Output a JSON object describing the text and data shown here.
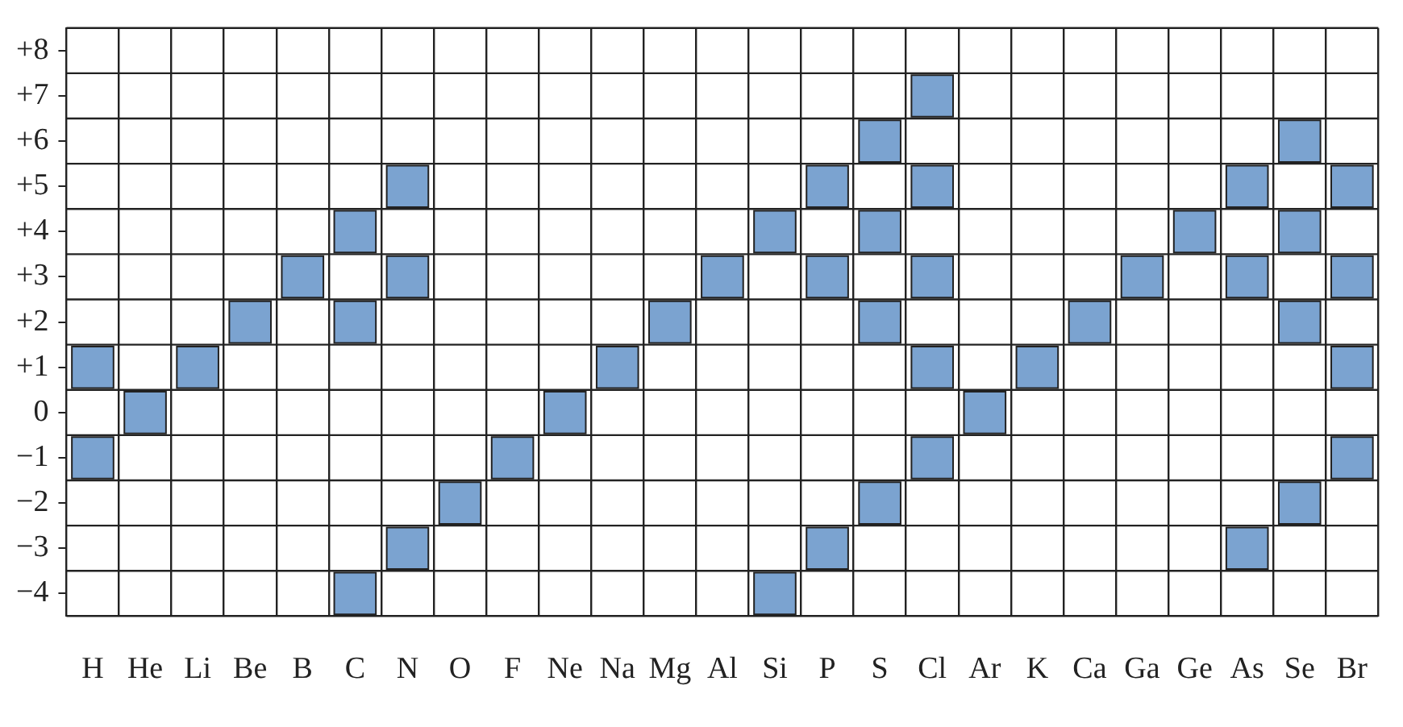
{
  "chart_data": {
    "type": "scatter",
    "marker": "square",
    "grid": true,
    "categories": [
      "H",
      "He",
      "Li",
      "Be",
      "B",
      "C",
      "N",
      "O",
      "F",
      "Ne",
      "Na",
      "Mg",
      "Al",
      "Si",
      "P",
      "S",
      "Cl",
      "Ar",
      "K",
      "Ca",
      "Ga",
      "Ge",
      "As",
      "Se",
      "Br"
    ],
    "series": [
      {
        "color": "#7ba3d0",
        "x": [
          "H",
          "H",
          "He",
          "Li",
          "Be",
          "B",
          "C",
          "C",
          "C",
          "N",
          "N",
          "N",
          "O",
          "F",
          "Ne",
          "Na",
          "Mg",
          "Al",
          "Si",
          "Si",
          "P",
          "P",
          "P",
          "S",
          "S",
          "S",
          "S",
          "Cl",
          "Cl",
          "Cl",
          "Cl",
          "Cl",
          "Ar",
          "K",
          "Ca",
          "Ga",
          "Ge",
          "As",
          "As",
          "As",
          "Se",
          "Se",
          "Se",
          "Se",
          "Br",
          "Br",
          "Br",
          "Br"
        ],
        "values": [
          1,
          -1,
          0,
          1,
          2,
          3,
          4,
          2,
          -4,
          5,
          3,
          -3,
          -2,
          -1,
          0,
          1,
          2,
          3,
          4,
          -4,
          5,
          3,
          -3,
          6,
          4,
          2,
          -2,
          7,
          5,
          3,
          1,
          -1,
          0,
          1,
          2,
          3,
          4,
          5,
          3,
          -3,
          6,
          4,
          2,
          -2,
          5,
          3,
          1,
          -1
        ]
      }
    ],
    "ylim": [
      -4.5,
      8.5
    ],
    "yticks": [
      {
        "value": 8,
        "label": "+8"
      },
      {
        "value": 7,
        "label": "+7"
      },
      {
        "value": 6,
        "label": "+6"
      },
      {
        "value": 5,
        "label": "+5"
      },
      {
        "value": 4,
        "label": "+4"
      },
      {
        "value": 3,
        "label": "+3"
      },
      {
        "value": 2,
        "label": "+2"
      },
      {
        "value": 1,
        "label": "+1"
      },
      0,
      {
        "value": -1,
        "label": "−1"
      },
      {
        "value": -2,
        "label": "−2"
      },
      {
        "value": -3,
        "label": "−3"
      },
      {
        "value": -4,
        "label": "−4"
      }
    ]
  }
}
